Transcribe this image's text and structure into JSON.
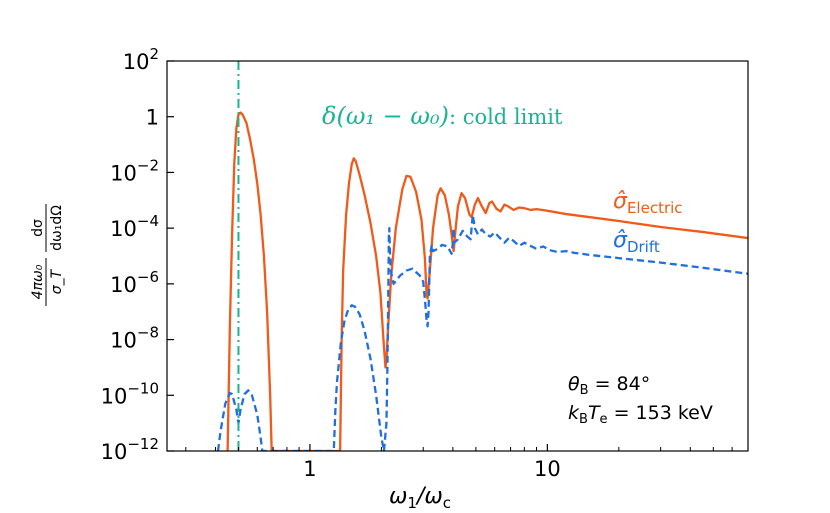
{
  "chart_data": {
    "type": "line",
    "x_scale": "log",
    "y_scale": "log",
    "xlim": [
      0.25,
      70
    ],
    "ylim": [
      1e-12,
      100
    ],
    "xlabel": {
      "base": "ω",
      "sub1": "1",
      "mid": "/ω",
      "sub2": "c"
    },
    "ylabel": {
      "num": "4πω₀",
      "den": "σ_T",
      "num2": "dσ",
      "den2": "dω₁dΩ"
    },
    "x_ticks": [
      {
        "value": 1,
        "label": "1"
      },
      {
        "value": 10,
        "label": "10"
      }
    ],
    "y_ticks": [
      {
        "value": 100.0,
        "base": "10",
        "exp": "2"
      },
      {
        "value": 1.0,
        "base": "1",
        "exp": ""
      },
      {
        "value": 0.01,
        "base": "10",
        "exp": "−2"
      },
      {
        "value": 0.0001,
        "base": "10",
        "exp": "−4"
      },
      {
        "value": 1e-06,
        "base": "10",
        "exp": "−6"
      },
      {
        "value": 1e-08,
        "base": "10",
        "exp": "−8"
      },
      {
        "value": 1e-10,
        "base": "10",
        "exp": "−10"
      },
      {
        "value": 1e-12,
        "base": "10",
        "exp": "−12"
      }
    ],
    "cold_limit": {
      "x": 0.5,
      "label_math": "δ(ω₁ − ω₀)",
      "label_text": ": cold limit",
      "color": "#1ab394"
    },
    "series": [
      {
        "name": "σ̂_Electric",
        "label_base": "σ̂",
        "label_sub": "Electric",
        "color": "#f05a1a",
        "style": "solid",
        "points": [
          [
            0.45,
            1e-12
          ],
          [
            0.46,
            3e-08
          ],
          [
            0.47,
            6e-05
          ],
          [
            0.48,
            0.02
          ],
          [
            0.49,
            0.4
          ],
          [
            0.5,
            1.2
          ],
          [
            0.51,
            1.4
          ],
          [
            0.52,
            1.2
          ],
          [
            0.54,
            0.6
          ],
          [
            0.56,
            0.15
          ],
          [
            0.58,
            0.03
          ],
          [
            0.6,
            0.004
          ],
          [
            0.62,
            0.0003
          ],
          [
            0.64,
            1e-05
          ],
          [
            0.66,
            1e-07
          ],
          [
            0.68,
            1e-10
          ],
          [
            0.69,
            1e-12
          ],
          [
            1.34,
            1e-12
          ],
          [
            1.36,
            1e-08
          ],
          [
            1.38,
            3e-06
          ],
          [
            1.42,
            0.0003
          ],
          [
            1.46,
            0.004
          ],
          [
            1.5,
            0.02
          ],
          [
            1.53,
            0.032
          ],
          [
            1.56,
            0.025
          ],
          [
            1.62,
            0.008
          ],
          [
            1.7,
            0.0015
          ],
          [
            1.8,
            0.00015
          ],
          [
            1.9,
            1e-05
          ],
          [
            1.98,
            5e-07
          ],
          [
            2.04,
            1e-08
          ],
          [
            2.08,
            1e-09
          ],
          [
            2.1,
            2e-09
          ],
          [
            2.13,
            2e-08
          ],
          [
            2.2,
            2e-06
          ],
          [
            2.3,
            0.0001
          ],
          [
            2.45,
            0.0025
          ],
          [
            2.55,
            0.0075
          ],
          [
            2.65,
            0.007
          ],
          [
            2.8,
            0.002
          ],
          [
            2.95,
            0.0002
          ],
          [
            3.05,
            8e-06
          ],
          [
            3.1,
            4e-07
          ],
          [
            3.13,
            3e-07
          ],
          [
            3.2,
            3e-06
          ],
          [
            3.3,
            0.0001
          ],
          [
            3.45,
            0.0015
          ],
          [
            3.55,
            0.0027
          ],
          [
            3.7,
            0.0015
          ],
          [
            3.85,
            0.0003
          ],
          [
            3.95,
            6e-05
          ],
          [
            4.03,
            1.5e-05
          ],
          [
            4.1,
            8e-05
          ],
          [
            4.2,
            0.0006
          ],
          [
            4.35,
            0.0018
          ],
          [
            4.5,
            0.0012
          ],
          [
            4.7,
            0.0003
          ],
          [
            4.8,
            0.00025
          ],
          [
            4.95,
            0.0007
          ],
          [
            5.1,
            0.0012
          ],
          [
            5.3,
            0.0006
          ],
          [
            5.5,
            0.00035
          ],
          [
            5.7,
            0.0008
          ],
          [
            5.85,
            0.0009
          ],
          [
            6.1,
            0.0005
          ],
          [
            6.35,
            0.0004
          ],
          [
            6.6,
            0.0007
          ],
          [
            6.85,
            0.0006
          ],
          [
            7.2,
            0.00045
          ],
          [
            7.6,
            0.00055
          ],
          [
            8.0,
            0.00052
          ],
          [
            8.5,
            0.00045
          ],
          [
            9.0,
            0.00048
          ],
          [
            10.0,
            0.00042
          ],
          [
            12,
            0.00032
          ],
          [
            15,
            0.00025
          ],
          [
            20,
            0.00018
          ],
          [
            30,
            0.00011
          ],
          [
            45,
            7.3e-05
          ],
          [
            70,
            4.4e-05
          ]
        ]
      },
      {
        "name": "σ̂_Drift",
        "label_base": "σ̂",
        "label_sub": "Drift",
        "color": "#1f6fe0",
        "style": "dashed",
        "points": [
          [
            0.41,
            1e-12
          ],
          [
            0.42,
            5e-12
          ],
          [
            0.44,
            5e-11
          ],
          [
            0.46,
            1.2e-10
          ],
          [
            0.47,
            1.1e-10
          ],
          [
            0.49,
            3e-11
          ],
          [
            0.5,
            1e-11
          ],
          [
            0.51,
            3e-11
          ],
          [
            0.53,
            1.1e-10
          ],
          [
            0.55,
            1.5e-10
          ],
          [
            0.57,
            1e-10
          ],
          [
            0.6,
            2e-11
          ],
          [
            0.62,
            3e-12
          ],
          [
            0.63,
            1e-12
          ],
          [
            1.26,
            1e-12
          ],
          [
            1.28,
            3e-11
          ],
          [
            1.3,
            3e-10
          ],
          [
            1.35,
            8e-09
          ],
          [
            1.4,
            5e-08
          ],
          [
            1.45,
            1.2e-07
          ],
          [
            1.5,
            1.7e-07
          ],
          [
            1.55,
            1.5e-07
          ],
          [
            1.62,
            8e-08
          ],
          [
            1.7,
            2e-08
          ],
          [
            1.8,
            2e-09
          ],
          [
            1.9,
            1e-10
          ],
          [
            2.0,
            3e-12
          ],
          [
            2.05,
            1e-12
          ],
          [
            2.1,
            1e-11
          ],
          [
            2.12,
            1e-09
          ],
          [
            2.14,
            1e-06
          ],
          [
            2.15,
            6e-05
          ],
          [
            2.16,
            0.0001
          ],
          [
            2.17,
            2e-05
          ],
          [
            2.19,
            3e-06
          ],
          [
            2.25,
            1e-06
          ],
          [
            2.4,
            2e-06
          ],
          [
            2.55,
            3e-06
          ],
          [
            2.7,
            3.5e-06
          ],
          [
            2.9,
            2e-06
          ],
          [
            3.0,
            1.2e-06
          ],
          [
            3.06,
            2e-07
          ],
          [
            3.1,
            5e-08
          ],
          [
            3.13,
            3e-08
          ],
          [
            3.16,
            1e-07
          ],
          [
            3.2,
            1e-05
          ],
          [
            3.26,
            2.5e-05
          ],
          [
            3.3,
            1.5e-05
          ],
          [
            3.45,
            1.8e-05
          ],
          [
            3.6,
            2.5e-05
          ],
          [
            3.8,
            2.2e-05
          ],
          [
            3.95,
            1.2e-05
          ],
          [
            4.0,
            3e-05
          ],
          [
            4.02,
            0.0001
          ],
          [
            4.05,
            3e-05
          ],
          [
            4.2,
            4e-05
          ],
          [
            4.4,
            8e-05
          ],
          [
            4.6,
            5e-05
          ],
          [
            4.75,
            4e-05
          ],
          [
            4.85,
            0.0003
          ],
          [
            4.95,
            0.0001
          ],
          [
            5.1,
            6e-05
          ],
          [
            5.3,
            9e-05
          ],
          [
            5.5,
            6e-05
          ],
          [
            5.75,
            5e-05
          ],
          [
            6.0,
            7e-05
          ],
          [
            6.3,
            4.5e-05
          ],
          [
            6.6,
            3e-05
          ],
          [
            6.9,
            4.5e-05
          ],
          [
            7.2,
            3.5e-05
          ],
          [
            7.6,
            2.3e-05
          ],
          [
            8.0,
            3e-05
          ],
          [
            8.5,
            2.3e-05
          ],
          [
            9.0,
            1.8e-05
          ],
          [
            9.6,
            2.2e-05
          ],
          [
            10.3,
            1.6e-05
          ],
          [
            11,
            1.4e-05
          ],
          [
            12,
            1.5e-05
          ],
          [
            13,
            1.3e-05
          ],
          [
            15,
            1.1e-05
          ],
          [
            20,
            8.4e-06
          ],
          [
            30,
            5.8e-06
          ],
          [
            45,
            3.8e-06
          ],
          [
            70,
            2.3e-06
          ]
        ]
      }
    ],
    "annotation": {
      "line1": {
        "base": "θ",
        "sub": "B",
        "rest": " = 84°"
      },
      "line2": {
        "base1": "k",
        "sub1": "B",
        "base2": "T",
        "sub2": "e",
        "rest": " = 153 keV"
      }
    }
  }
}
